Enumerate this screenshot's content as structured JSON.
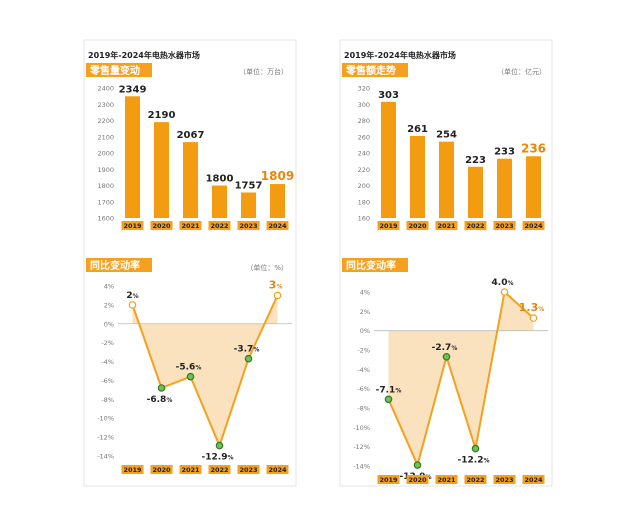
{
  "colors": {
    "accent": "#f5a01e",
    "bar": "#f39c12",
    "bar_dark": "#e8870b",
    "fill": "#fbe2bf",
    "dot": "#6fbf5a",
    "text": "#222222",
    "muted": "#777777",
    "grid": "#dddddd"
  },
  "chart_data": [
    {
      "type": "bar",
      "title": "2019年-2024年电热水器市场",
      "subtitle": "零售量变动",
      "unit": "（单位：万台）",
      "categories": [
        "2019",
        "2020",
        "2021",
        "2022",
        "2023",
        "2024"
      ],
      "values": [
        2349,
        2190,
        2067,
        1800,
        1757,
        1809
      ],
      "value_labels": [
        "2349",
        "2190",
        "2067",
        "1800",
        "1757",
        "1809"
      ],
      "highlight_index": 5,
      "ylim": [
        1600,
        2400
      ],
      "yticks": [
        "1600",
        "1700",
        "1800",
        "1900",
        "2000",
        "2100",
        "2200",
        "2300",
        "2400"
      ]
    },
    {
      "type": "bar",
      "title": "2019年-2024年电热水器市场",
      "subtitle": "零售额走势",
      "unit": "（单位：亿元）",
      "categories": [
        "2019",
        "2020",
        "2021",
        "2022",
        "2023",
        "2024"
      ],
      "values": [
        303,
        261,
        254,
        223,
        233,
        236
      ],
      "value_labels": [
        "303",
        "261",
        "254",
        "223",
        "233",
        "236"
      ],
      "highlight_index": 5,
      "ylim": [
        160,
        320
      ],
      "yticks": [
        "160",
        "180",
        "200",
        "220",
        "240",
        "260",
        "280",
        "300",
        "320"
      ]
    },
    {
      "type": "line",
      "subtitle": "同比变动率",
      "unit": "（单位：%）",
      "categories": [
        "2019",
        "2020",
        "2021",
        "2022",
        "2023",
        "2024"
      ],
      "values": [
        2,
        -6.8,
        -5.6,
        -12.9,
        -3.7,
        3
      ],
      "value_labels": [
        "2",
        "-6.8",
        "-5.6",
        "-12.9",
        "-3.7",
        "3"
      ],
      "label_suffix": "%",
      "highlight_index": 5,
      "ylim": [
        -14,
        4
      ],
      "yticks": [
        "-14%",
        "-12%",
        "-10%",
        "-8%",
        "-6%",
        "-4%",
        "-2%",
        "0%",
        "2%",
        "4%"
      ]
    },
    {
      "type": "line",
      "subtitle": "同比变动率",
      "unit": "",
      "categories": [
        "2019",
        "2020",
        "2021",
        "2022",
        "2023",
        "2024"
      ],
      "values": [
        -7.1,
        -13.9,
        -2.7,
        -12.2,
        4.0,
        1.3
      ],
      "value_labels": [
        "-7.1",
        "-13.9",
        "-2.7",
        "-12.2",
        "4.0",
        "1.3"
      ],
      "label_suffix": "%",
      "highlight_index": 5,
      "ylim": [
        -14,
        4
      ],
      "yticks": [
        "-14%",
        "-12%",
        "-10%",
        "-8%",
        "-6%",
        "-4%",
        "-2%",
        "0%",
        "2%",
        "4%"
      ]
    }
  ]
}
